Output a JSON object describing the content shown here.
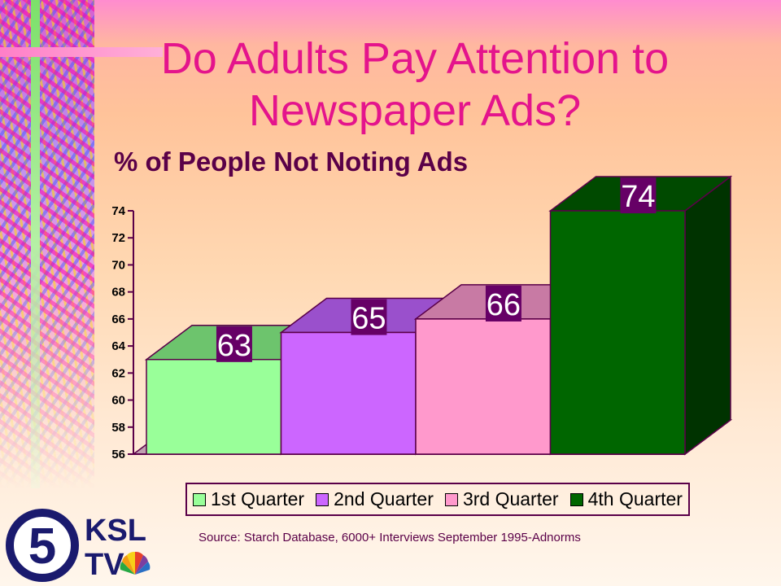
{
  "title": "Do Adults Pay Attention to Newspaper Ads?",
  "source_note": "Source: Starch Database, 6000+ Interviews September 1995-Adnorms",
  "logo": {
    "text_top": "KSL",
    "text_bottom": "TV",
    "numeral": "5"
  },
  "chart_data": {
    "type": "bar",
    "title": "% of People Not Noting Ads",
    "categories": [
      "1st Quarter",
      "2nd Quarter",
      "3rd Quarter",
      "4th Quarter"
    ],
    "values": [
      63,
      65,
      66,
      74
    ],
    "data_labels": [
      "63",
      "65",
      "66",
      "74"
    ],
    "ylim": [
      56,
      74
    ],
    "yticks": [
      56,
      58,
      60,
      62,
      64,
      66,
      68,
      70,
      72,
      74
    ],
    "legend_position": "bottom",
    "grid": false,
    "style": "3d",
    "colors": [
      "#99ff99",
      "#cc66ff",
      "#ff99cc",
      "#006600"
    ],
    "top_colors": [
      "#6dc46d",
      "#9a50cc",
      "#c87aa4",
      "#004a00"
    ],
    "side_colors": [
      "#57a957",
      "#7a3aa8",
      "#b0648c",
      "#003300"
    ],
    "label_bg": "#660066",
    "label_color": "#ffffff"
  }
}
